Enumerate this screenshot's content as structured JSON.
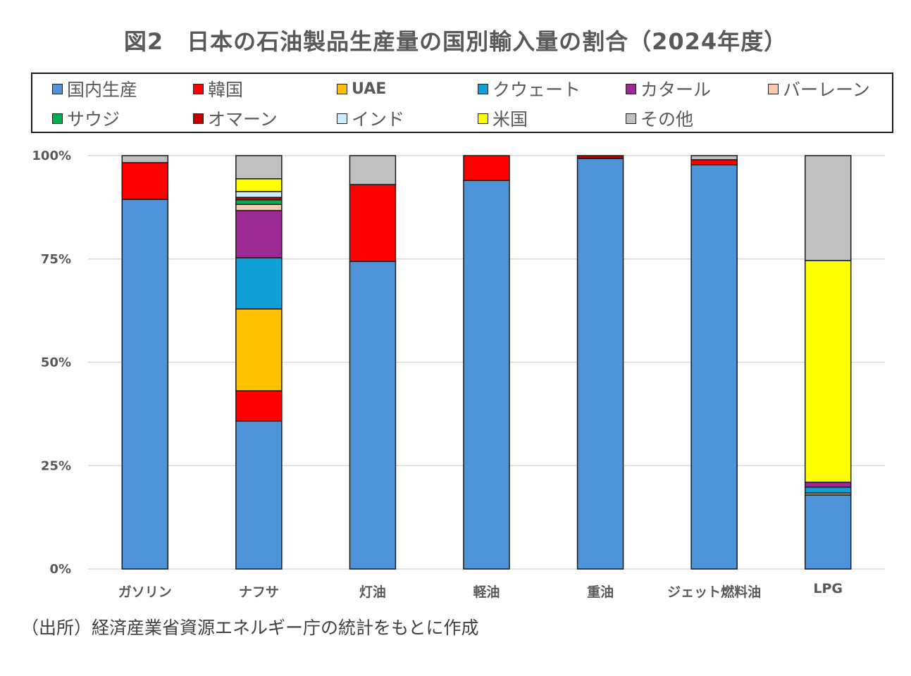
{
  "title": "図2　日本の石油製品生産量の国別輸入量の割合（2024年度）",
  "source": "（出所）経済産業省資源エネルギー庁の統計をもとに作成",
  "chart_data": {
    "type": "bar",
    "stacked": true,
    "percent": true,
    "title": "図2　日本の石油製品生産量の国別輸入量の割合（2024年度）",
    "xlabel": "",
    "ylabel": "",
    "ylim": [
      0,
      100
    ],
    "yticks": [
      0,
      25,
      50,
      75,
      100
    ],
    "ytick_labels": [
      "0%",
      "25%",
      "50%",
      "75%",
      "100%"
    ],
    "grid": true,
    "legend_position": "top",
    "categories": [
      "ガソリン",
      "ナフサ",
      "灯油",
      "軽油",
      "重油",
      "ジェット燃料油",
      "LPG"
    ],
    "series": [
      {
        "name": "国内生産",
        "color": "#4f94d8",
        "values": [
          89.4,
          35.8,
          74.4,
          94.0,
          99.3,
          97.8,
          17.9
        ]
      },
      {
        "name": "韓国",
        "color": "#ff0000",
        "values": [
          8.9,
          7.3,
          18.6,
          6.0,
          0,
          1.2,
          0
        ]
      },
      {
        "name": "UAE",
        "color": "#ffc000",
        "values": [
          0,
          19.8,
          0,
          0,
          0,
          0,
          0.5
        ]
      },
      {
        "name": "クウェート",
        "color": "#119fd6",
        "values": [
          0,
          12.4,
          0,
          0,
          0,
          0,
          1.4
        ]
      },
      {
        "name": "カタール",
        "color": "#9c2a94",
        "values": [
          0,
          11.4,
          0,
          0,
          0,
          0,
          1.2
        ]
      },
      {
        "name": "バーレーン",
        "color": "#f8cbad",
        "values": [
          0,
          1.5,
          0,
          0,
          0,
          0,
          0
        ]
      },
      {
        "name": "サウジ",
        "color": "#00b050",
        "values": [
          0,
          1.1,
          0,
          0,
          0,
          0,
          0
        ]
      },
      {
        "name": "オマーン",
        "color": "#c00000",
        "values": [
          0,
          0.6,
          0,
          0,
          0.7,
          0,
          0
        ]
      },
      {
        "name": "インド",
        "color": "#cdeefa",
        "values": [
          0,
          1.4,
          0,
          0,
          0,
          0,
          0
        ]
      },
      {
        "name": "米国",
        "color": "#ffff00",
        "values": [
          0,
          3.1,
          0,
          0,
          0,
          0,
          53.6
        ]
      },
      {
        "name": "その他",
        "color": "#bfbfbf",
        "values": [
          1.7,
          5.6,
          7.0,
          0,
          0,
          1.0,
          25.4
        ]
      }
    ]
  }
}
